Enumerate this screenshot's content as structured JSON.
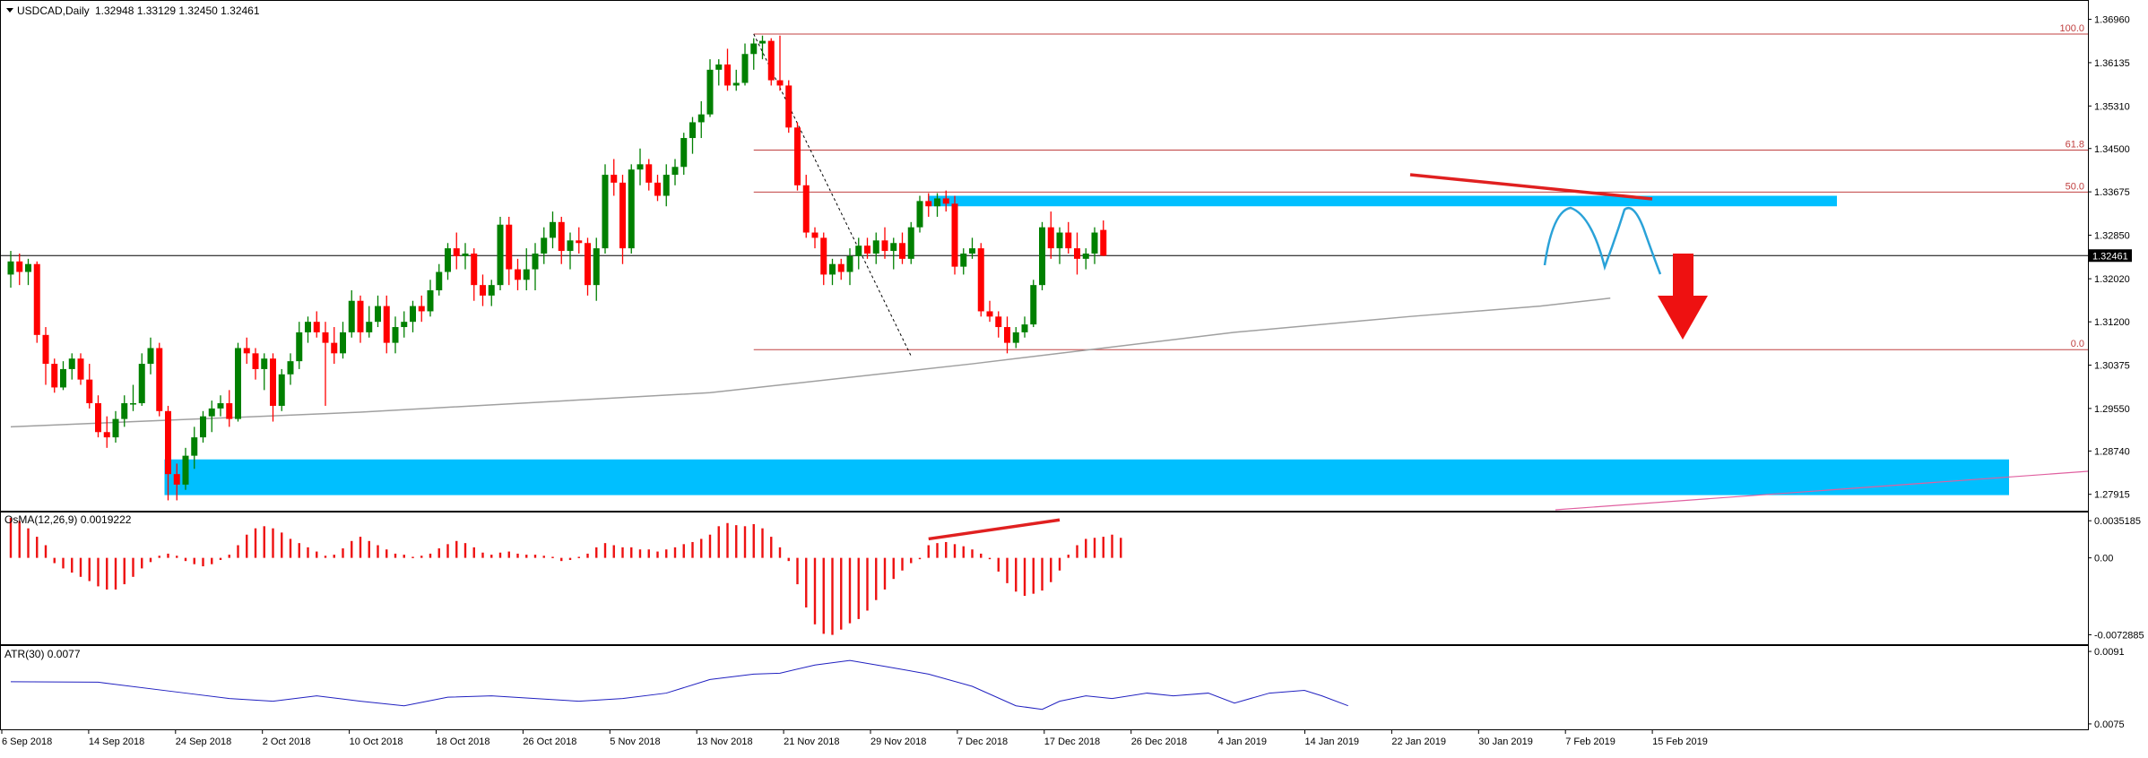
{
  "header": {
    "symbol_label": "USDCAD,Daily",
    "ohlc_text": "1.32948 1.33129 1.32450 1.32461"
  },
  "indicators": {
    "osma_label": "OsMA(12,26,9) 0.0019222",
    "atr_label": "ATR(30) 0.0077"
  },
  "colors": {
    "bull": "#008000",
    "bear": "#ff0000",
    "zone": "#00bfff",
    "fib": "#c04040",
    "ma": "#a0a0a0",
    "atr": "#2020c0",
    "pink_line": "#e060a0"
  },
  "chart_data": {
    "type": "candlestick",
    "price_axis": {
      "range": [
        1.2762,
        1.3726
      ],
      "ticks": [
        "1.36960",
        "1.36135",
        "1.35310",
        "1.34500",
        "1.33675",
        "1.32850",
        "1.32020",
        "1.31200",
        "1.30375",
        "1.29550",
        "1.28740",
        "1.27915"
      ],
      "current_price_label": "1.32461"
    },
    "time_axis": {
      "labels": [
        "6 Sep 2018",
        "14 Sep 2018",
        "24 Sep 2018",
        "2 Oct 2018",
        "10 Oct 2018",
        "18 Oct 2018",
        "26 Oct 2018",
        "5 Nov 2018",
        "13 Nov 2018",
        "21 Nov 2018",
        "29 Nov 2018",
        "7 Dec 2018",
        "17 Dec 2018",
        "26 Dec 2018",
        "4 Jan 2019",
        "14 Jan 2019",
        "22 Jan 2019",
        "30 Jan 2019",
        "7 Feb 2019",
        "15 Feb 2019"
      ]
    },
    "candles": [
      [
        1.321,
        1.3255,
        1.3185,
        1.3235
      ],
      [
        1.3235,
        1.325,
        1.319,
        1.3215
      ],
      [
        1.3215,
        1.324,
        1.319,
        1.323
      ],
      [
        1.323,
        1.3235,
        1.308,
        1.3095
      ],
      [
        1.3095,
        1.311,
        1.3,
        1.304
      ],
      [
        1.304,
        1.305,
        1.2985,
        1.2995
      ],
      [
        1.2995,
        1.3045,
        1.299,
        1.303
      ],
      [
        1.303,
        1.306,
        1.301,
        1.305
      ],
      [
        1.305,
        1.306,
        1.3,
        1.301
      ],
      [
        1.301,
        1.304,
        1.2955,
        1.2965
      ],
      [
        1.2965,
        1.298,
        1.29,
        1.291
      ],
      [
        1.291,
        1.294,
        1.288,
        1.29
      ],
      [
        1.29,
        1.295,
        1.289,
        1.2935
      ],
      [
        1.2935,
        1.298,
        1.292,
        1.2965
      ],
      [
        1.2965,
        1.3,
        1.295,
        1.2965
      ],
      [
        1.2965,
        1.306,
        1.296,
        1.304
      ],
      [
        1.304,
        1.309,
        1.302,
        1.307
      ],
      [
        1.307,
        1.308,
        1.294,
        1.295
      ],
      [
        1.295,
        1.296,
        1.278,
        1.283
      ],
      [
        1.283,
        1.285,
        1.278,
        1.281
      ],
      [
        1.281,
        1.288,
        1.28,
        1.2865
      ],
      [
        1.2865,
        1.292,
        1.284,
        1.29
      ],
      [
        1.29,
        1.295,
        1.289,
        1.294
      ],
      [
        1.294,
        1.297,
        1.291,
        1.2955
      ],
      [
        1.2955,
        1.298,
        1.294,
        1.2965
      ],
      [
        1.2965,
        1.299,
        1.292,
        1.2935
      ],
      [
        1.2935,
        1.308,
        1.293,
        1.307
      ],
      [
        1.307,
        1.309,
        1.304,
        1.306
      ],
      [
        1.306,
        1.307,
        1.301,
        1.303
      ],
      [
        1.303,
        1.306,
        1.299,
        1.305
      ],
      [
        1.305,
        1.306,
        1.293,
        1.296
      ],
      [
        1.296,
        1.303,
        1.295,
        1.302
      ],
      [
        1.302,
        1.306,
        1.3,
        1.3045
      ],
      [
        1.3045,
        1.312,
        1.303,
        1.31
      ],
      [
        1.31,
        1.313,
        1.308,
        1.312
      ],
      [
        1.312,
        1.314,
        1.309,
        1.31
      ],
      [
        1.31,
        1.312,
        1.296,
        1.308
      ],
      [
        1.308,
        1.311,
        1.304,
        1.306
      ],
      [
        1.306,
        1.312,
        1.305,
        1.31
      ],
      [
        1.31,
        1.318,
        1.309,
        1.316
      ],
      [
        1.316,
        1.317,
        1.308,
        1.31
      ],
      [
        1.31,
        1.315,
        1.309,
        1.312
      ],
      [
        1.312,
        1.317,
        1.311,
        1.315
      ],
      [
        1.315,
        1.317,
        1.306,
        1.308
      ],
      [
        1.308,
        1.313,
        1.306,
        1.311
      ],
      [
        1.311,
        1.314,
        1.309,
        1.312
      ],
      [
        1.312,
        1.316,
        1.31,
        1.315
      ],
      [
        1.315,
        1.317,
        1.312,
        1.314
      ],
      [
        1.314,
        1.32,
        1.313,
        1.318
      ],
      [
        1.318,
        1.323,
        1.317,
        1.3215
      ],
      [
        1.3215,
        1.327,
        1.32,
        1.326
      ],
      [
        1.326,
        1.329,
        1.322,
        1.3245
      ],
      [
        1.3245,
        1.327,
        1.322,
        1.325
      ],
      [
        1.325,
        1.326,
        1.316,
        1.319
      ],
      [
        1.319,
        1.321,
        1.315,
        1.317
      ],
      [
        1.317,
        1.32,
        1.315,
        1.319
      ],
      [
        1.319,
        1.332,
        1.318,
        1.3305
      ],
      [
        1.3305,
        1.332,
        1.319,
        1.322
      ],
      [
        1.322,
        1.324,
        1.318,
        1.32
      ],
      [
        1.32,
        1.326,
        1.318,
        1.322
      ],
      [
        1.322,
        1.327,
        1.318,
        1.325
      ],
      [
        1.325,
        1.33,
        1.323,
        1.328
      ],
      [
        1.328,
        1.333,
        1.326,
        1.331
      ],
      [
        1.331,
        1.332,
        1.323,
        1.3255
      ],
      [
        1.3255,
        1.329,
        1.322,
        1.3275
      ],
      [
        1.3275,
        1.33,
        1.325,
        1.327
      ],
      [
        1.327,
        1.328,
        1.317,
        1.319
      ],
      [
        1.319,
        1.328,
        1.316,
        1.326
      ],
      [
        1.326,
        1.342,
        1.325,
        1.34
      ],
      [
        1.34,
        1.343,
        1.336,
        1.3385
      ],
      [
        1.3385,
        1.34,
        1.323,
        1.326
      ],
      [
        1.326,
        1.342,
        1.325,
        1.341
      ],
      [
        1.341,
        1.345,
        1.338,
        1.342
      ],
      [
        1.342,
        1.343,
        1.337,
        1.3385
      ],
      [
        1.3385,
        1.34,
        1.335,
        1.336
      ],
      [
        1.336,
        1.342,
        1.334,
        1.34
      ],
      [
        1.34,
        1.343,
        1.338,
        1.3415
      ],
      [
        1.3415,
        1.348,
        1.34,
        1.347
      ],
      [
        1.347,
        1.351,
        1.344,
        1.35
      ],
      [
        1.35,
        1.354,
        1.347,
        1.3515
      ],
      [
        1.3515,
        1.362,
        1.351,
        1.36
      ],
      [
        1.36,
        1.362,
        1.357,
        1.361
      ],
      [
        1.361,
        1.364,
        1.356,
        1.357
      ],
      [
        1.357,
        1.36,
        1.356,
        1.3575
      ],
      [
        1.3575,
        1.365,
        1.357,
        1.363
      ],
      [
        1.363,
        1.366,
        1.36,
        1.365
      ],
      [
        1.365,
        1.3665,
        1.362,
        1.3655
      ],
      [
        1.3655,
        1.366,
        1.357,
        1.358
      ],
      [
        1.358,
        1.3665,
        1.356,
        1.357
      ],
      [
        1.357,
        1.358,
        1.348,
        1.349
      ],
      [
        1.349,
        1.35,
        1.337,
        1.338
      ],
      [
        1.338,
        1.34,
        1.328,
        1.329
      ],
      [
        1.329,
        1.33,
        1.326,
        1.328
      ],
      [
        1.328,
        1.329,
        1.319,
        1.321
      ],
      [
        1.321,
        1.324,
        1.319,
        1.323
      ],
      [
        1.323,
        1.324,
        1.32,
        1.3215
      ],
      [
        1.3215,
        1.326,
        1.319,
        1.3245
      ],
      [
        1.3245,
        1.328,
        1.322,
        1.3265
      ],
      [
        1.3265,
        1.328,
        1.324,
        1.325
      ],
      [
        1.325,
        1.329,
        1.323,
        1.3275
      ],
      [
        1.3275,
        1.33,
        1.324,
        1.3255
      ],
      [
        1.3255,
        1.328,
        1.322,
        1.327
      ],
      [
        1.327,
        1.329,
        1.323,
        1.324
      ],
      [
        1.324,
        1.331,
        1.323,
        1.33
      ],
      [
        1.33,
        1.336,
        1.329,
        1.335
      ],
      [
        1.335,
        1.3365,
        1.332,
        1.334
      ],
      [
        1.334,
        1.3365,
        1.332,
        1.3355
      ],
      [
        1.3355,
        1.337,
        1.333,
        1.3345
      ],
      [
        1.3345,
        1.336,
        1.321,
        1.3225
      ],
      [
        1.3225,
        1.326,
        1.321,
        1.325
      ],
      [
        1.325,
        1.328,
        1.324,
        1.326
      ],
      [
        1.326,
        1.327,
        1.313,
        1.314
      ],
      [
        1.314,
        1.316,
        1.312,
        1.313
      ],
      [
        1.313,
        1.314,
        1.309,
        1.311
      ],
      [
        1.311,
        1.313,
        1.306,
        1.308
      ],
      [
        1.308,
        1.311,
        1.307,
        1.31
      ],
      [
        1.31,
        1.313,
        1.309,
        1.3115
      ],
      [
        1.3115,
        1.32,
        1.311,
        1.319
      ],
      [
        1.319,
        1.331,
        1.318,
        1.33
      ],
      [
        1.33,
        1.333,
        1.324,
        1.326
      ],
      [
        1.326,
        1.33,
        1.323,
        1.329
      ],
      [
        1.329,
        1.331,
        1.325,
        1.326
      ],
      [
        1.326,
        1.329,
        1.321,
        1.324
      ],
      [
        1.324,
        1.326,
        1.322,
        1.325
      ],
      [
        1.325,
        1.33,
        1.323,
        1.329
      ],
      [
        1.3295,
        1.3313,
        1.3245,
        1.3246
      ]
    ],
    "moving_average": [
      [
        0,
        1.292
      ],
      [
        40,
        1.2948
      ],
      [
        80,
        1.2985
      ],
      [
        110,
        1.304
      ],
      [
        140,
        1.31
      ],
      [
        160,
        1.313
      ],
      [
        175,
        1.315
      ],
      [
        183,
        1.3165
      ]
    ],
    "fibonacci": {
      "levels": [
        {
          "label": "100.0",
          "price": 1.3668
        },
        {
          "label": "61.8",
          "price": 1.3447
        },
        {
          "label": "50.0",
          "price": 1.3367
        },
        {
          "label": "0.0",
          "price": 1.3067
        }
      ]
    },
    "resistance_zone": [
      1.336,
      1.334
    ],
    "support_zone": [
      1.2858,
      1.279
    ],
    "osma": {
      "ticks": [
        "0.0035185",
        "0.00",
        "-0.0072885"
      ],
      "range": [
        -0.0081,
        0.0043
      ],
      "values": [
        0.0038,
        0.0035,
        0.0028,
        0.002,
        0.0012,
        -0.0005,
        -0.001,
        -0.0014,
        -0.0018,
        -0.0022,
        -0.0027,
        -0.003,
        -0.003,
        -0.0025,
        -0.0018,
        -0.001,
        -0.0004,
        0.0002,
        0.0004,
        0.0002,
        -0.0003,
        -0.0006,
        -0.0008,
        -0.0006,
        -0.0002,
        0.0003,
        0.0012,
        0.0022,
        0.0028,
        0.003,
        0.0028,
        0.0024,
        0.0018,
        0.0014,
        0.001,
        0.0006,
        0.0002,
        0.0003,
        0.0009,
        0.0016,
        0.002,
        0.0016,
        0.0012,
        0.0008,
        0.0004,
        0.0003,
        0.0001,
        0.0002,
        0.0004,
        0.0009,
        0.0013,
        0.0016,
        0.0014,
        0.001,
        0.0005,
        0.0003,
        0.0005,
        0.0006,
        0.0004,
        0.0003,
        0.0003,
        0.0002,
        0.0001,
        -0.0003,
        -0.0002,
        0.0001,
        0.0004,
        0.001,
        0.0014,
        0.0012,
        0.001,
        0.001,
        0.0008,
        0.0008,
        0.0006,
        0.0008,
        0.001,
        0.0013,
        0.0015,
        0.0018,
        0.0022,
        0.003,
        0.0033,
        0.0031,
        0.003,
        0.0032,
        0.0028,
        0.002,
        0.001,
        -0.0003,
        -0.0025,
        -0.0047,
        -0.0063,
        -0.0072,
        -0.0073,
        -0.0068,
        -0.0062,
        -0.0058,
        -0.005,
        -0.004,
        -0.003,
        -0.002,
        -0.0012,
        -0.0005,
        0.0,
        0.0012,
        0.0014,
        0.0015,
        0.0013,
        0.0011,
        0.0008,
        0.0004,
        -0.0001,
        -0.0013,
        -0.0024,
        -0.0032,
        -0.0036,
        -0.0034,
        -0.0031,
        -0.0023,
        -0.0012,
        0.0003,
        0.0012,
        0.0018,
        0.0019,
        0.002,
        0.0022,
        0.0019
      ],
      "divergence_line": [
        [
          0.0018,
          105
        ],
        [
          0.0036,
          120
        ]
      ]
    },
    "atr": {
      "ticks": [
        "0.0091",
        "0.0075"
      ],
      "range": [
        0.00738,
        0.00922
      ],
      "points": [
        [
          0,
          0.00843
        ],
        [
          10,
          0.00842
        ],
        [
          20,
          0.00818
        ],
        [
          25,
          0.00806
        ],
        [
          30,
          0.008
        ],
        [
          35,
          0.00812
        ],
        [
          40,
          0.008
        ],
        [
          45,
          0.0079
        ],
        [
          50,
          0.00809
        ],
        [
          55,
          0.00812
        ],
        [
          60,
          0.00806
        ],
        [
          65,
          0.008
        ],
        [
          70,
          0.00806
        ],
        [
          75,
          0.00818
        ],
        [
          80,
          0.00848
        ],
        [
          85,
          0.0086
        ],
        [
          88,
          0.00862
        ],
        [
          92,
          0.0088
        ],
        [
          96,
          0.0089
        ],
        [
          100,
          0.00877
        ],
        [
          105,
          0.0086
        ],
        [
          110,
          0.00833
        ],
        [
          115,
          0.0079
        ],
        [
          118,
          0.00782
        ],
        [
          120,
          0.008
        ],
        [
          123,
          0.00812
        ],
        [
          126,
          0.00806
        ],
        [
          130,
          0.00818
        ],
        [
          133,
          0.00812
        ],
        [
          137,
          0.00818
        ],
        [
          140,
          0.00796
        ],
        [
          144,
          0.00818
        ],
        [
          148,
          0.00824
        ],
        [
          150,
          0.00812
        ],
        [
          153,
          0.0079
        ]
      ]
    }
  }
}
